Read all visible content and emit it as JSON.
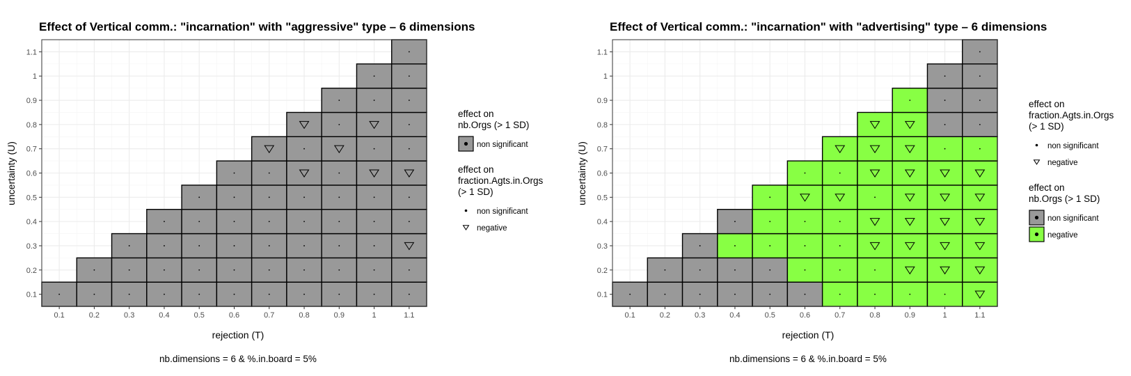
{
  "chart_data": [
    {
      "type": "heatmap",
      "title": "Effect of Vertical comm.: \"incarnation\" with \"aggressive\" type – 6 dimensions",
      "xlabel": "rejection (T)",
      "ylabel": "uncertainty (U)",
      "x_ticks": [
        "0.1",
        "0.2",
        "0.3",
        "0.4",
        "0.5",
        "0.6",
        "0.7",
        "0.8",
        "0.9",
        "1",
        "1.1"
      ],
      "y_ticks": [
        "0.1",
        "0.2",
        "0.3",
        "0.4",
        "0.5",
        "0.6",
        "0.7",
        "0.8",
        "0.9",
        "1",
        "1.1"
      ],
      "xlim": [
        0.05,
        1.15
      ],
      "ylim": [
        0.05,
        1.15
      ],
      "grid": true,
      "caption": "nb.dimensions = 6 & %.in.board = 5%",
      "fill_colors": {
        "non significant": "#999999",
        "negative": "#88ff44"
      },
      "legends": [
        {
          "title": [
            "effect on",
            "nb.Orgs (> 1 SD)"
          ],
          "kind": "fill",
          "entries": [
            {
              "label": "non significant",
              "color": "#999999"
            }
          ]
        },
        {
          "title": [
            "effect on",
            "fraction.Agts.in.Orgs",
            "(> 1 SD)"
          ],
          "kind": "shape",
          "entries": [
            {
              "label": "non significant",
              "shape": "dot"
            },
            {
              "label": "negative",
              "shape": "triangle"
            }
          ]
        }
      ],
      "fill_columns": [
        [
          "non significant"
        ],
        [
          "non significant",
          "non significant"
        ],
        [
          "non significant",
          "non significant",
          "non significant"
        ],
        [
          "non significant",
          "non significant",
          "non significant",
          "non significant"
        ],
        [
          "non significant",
          "non significant",
          "non significant",
          "non significant",
          "non significant"
        ],
        [
          "non significant",
          "non significant",
          "non significant",
          "non significant",
          "non significant",
          "non significant"
        ],
        [
          "non significant",
          "non significant",
          "non significant",
          "non significant",
          "non significant",
          "non significant",
          "non significant"
        ],
        [
          "non significant",
          "non significant",
          "non significant",
          "non significant",
          "non significant",
          "non significant",
          "non significant",
          "non significant"
        ],
        [
          "non significant",
          "non significant",
          "non significant",
          "non significant",
          "non significant",
          "non significant",
          "non significant",
          "non significant",
          "non significant"
        ],
        [
          "non significant",
          "non significant",
          "non significant",
          "non significant",
          "non significant",
          "non significant",
          "non significant",
          "non significant",
          "non significant",
          "non significant"
        ],
        [
          "non significant",
          "non significant",
          "non significant",
          "non significant",
          "non significant",
          "non significant",
          "non significant",
          "non significant",
          "non significant",
          "non significant",
          "non significant"
        ]
      ],
      "shape_columns": [
        [
          "non significant"
        ],
        [
          "non significant",
          "non significant"
        ],
        [
          "non significant",
          "non significant",
          "non significant"
        ],
        [
          "non significant",
          "non significant",
          "non significant",
          "non significant"
        ],
        [
          "non significant",
          "non significant",
          "non significant",
          "non significant",
          "non significant"
        ],
        [
          "non significant",
          "non significant",
          "non significant",
          "non significant",
          "non significant",
          "non significant"
        ],
        [
          "non significant",
          "non significant",
          "non significant",
          "non significant",
          "non significant",
          "non significant",
          "negative"
        ],
        [
          "non significant",
          "non significant",
          "non significant",
          "non significant",
          "non significant",
          "negative",
          "non significant",
          "negative"
        ],
        [
          "non significant",
          "non significant",
          "non significant",
          "non significant",
          "non significant",
          "non significant",
          "negative",
          "non significant",
          "non significant"
        ],
        [
          "non significant",
          "non significant",
          "non significant",
          "non significant",
          "non significant",
          "negative",
          "non significant",
          "negative",
          "non significant",
          "non significant"
        ],
        [
          "non significant",
          "non significant",
          "negative",
          "non significant",
          "non significant",
          "negative",
          "non significant",
          "non significant",
          "non significant",
          "non significant",
          "non significant"
        ]
      ]
    },
    {
      "type": "heatmap",
      "title": "Effect of Vertical comm.: \"incarnation\" with \"advertising\" type – 6 dimensions",
      "xlabel": "rejection (T)",
      "ylabel": "uncertainty (U)",
      "x_ticks": [
        "0.1",
        "0.2",
        "0.3",
        "0.4",
        "0.5",
        "0.6",
        "0.7",
        "0.8",
        "0.9",
        "1",
        "1.1"
      ],
      "y_ticks": [
        "0.1",
        "0.2",
        "0.3",
        "0.4",
        "0.5",
        "0.6",
        "0.7",
        "0.8",
        "0.9",
        "1",
        "1.1"
      ],
      "xlim": [
        0.05,
        1.15
      ],
      "ylim": [
        0.05,
        1.15
      ],
      "grid": true,
      "caption": "nb.dimensions = 6 & %.in.board = 5%",
      "fill_colors": {
        "non significant": "#999999",
        "negative": "#88ff44"
      },
      "legends": [
        {
          "title": [
            "effect on",
            "fraction.Agts.in.Orgs",
            "(> 1 SD)"
          ],
          "kind": "shape",
          "entries": [
            {
              "label": "non significant",
              "shape": "dot"
            },
            {
              "label": "negative",
              "shape": "triangle"
            }
          ]
        },
        {
          "title": [
            "effect on",
            "nb.Orgs (> 1 SD)"
          ],
          "kind": "fill",
          "entries": [
            {
              "label": "non significant",
              "color": "#999999"
            },
            {
              "label": "negative",
              "color": "#88ff44"
            }
          ]
        }
      ],
      "fill_columns": [
        [
          "non significant"
        ],
        [
          "non significant",
          "non significant"
        ],
        [
          "non significant",
          "non significant",
          "non significant"
        ],
        [
          "non significant",
          "non significant",
          "negative",
          "non significant"
        ],
        [
          "non significant",
          "non significant",
          "negative",
          "negative",
          "negative"
        ],
        [
          "non significant",
          "negative",
          "negative",
          "negative",
          "negative",
          "negative"
        ],
        [
          "negative",
          "negative",
          "negative",
          "negative",
          "negative",
          "negative",
          "negative"
        ],
        [
          "negative",
          "negative",
          "negative",
          "negative",
          "negative",
          "negative",
          "negative",
          "negative"
        ],
        [
          "negative",
          "negative",
          "negative",
          "negative",
          "negative",
          "negative",
          "negative",
          "negative",
          "negative"
        ],
        [
          "negative",
          "negative",
          "negative",
          "negative",
          "negative",
          "negative",
          "negative",
          "non significant",
          "non significant",
          "non significant"
        ],
        [
          "negative",
          "negative",
          "negative",
          "negative",
          "negative",
          "negative",
          "negative",
          "non significant",
          "non significant",
          "non significant",
          "non significant"
        ]
      ],
      "shape_columns": [
        [
          "non significant"
        ],
        [
          "non significant",
          "non significant"
        ],
        [
          "non significant",
          "non significant",
          "non significant"
        ],
        [
          "non significant",
          "non significant",
          "non significant",
          "non significant"
        ],
        [
          "non significant",
          "non significant",
          "non significant",
          "non significant",
          "non significant"
        ],
        [
          "non significant",
          "non significant",
          "non significant",
          "non significant",
          "negative",
          "non significant"
        ],
        [
          "non significant",
          "non significant",
          "non significant",
          "non significant",
          "negative",
          "non significant",
          "negative"
        ],
        [
          "non significant",
          "non significant",
          "negative",
          "negative",
          "non significant",
          "negative",
          "negative",
          "negative"
        ],
        [
          "non significant",
          "negative",
          "negative",
          "negative",
          "negative",
          "negative",
          "negative",
          "negative",
          "non significant"
        ],
        [
          "non significant",
          "negative",
          "negative",
          "negative",
          "negative",
          "negative",
          "non significant",
          "non significant",
          "non significant",
          "non significant"
        ],
        [
          "negative",
          "negative",
          "negative",
          "negative",
          "negative",
          "negative",
          "non significant",
          "non significant",
          "non significant",
          "non significant",
          "non significant"
        ]
      ]
    }
  ]
}
